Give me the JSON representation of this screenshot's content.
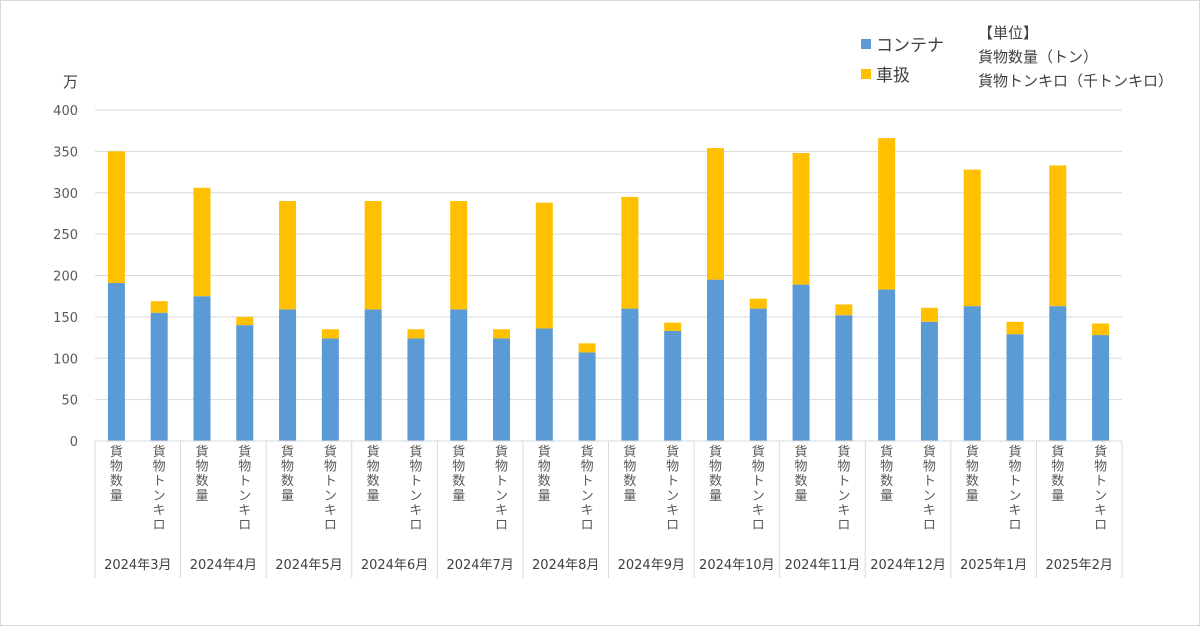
{
  "chart_data": {
    "type": "bar",
    "stacked": true,
    "y_unit_label": "万",
    "ylim": [
      0,
      400
    ],
    "yticks": [
      0,
      50,
      100,
      150,
      200,
      250,
      300,
      350,
      400
    ],
    "grid": true,
    "legend_position": "top-right",
    "unit_note": {
      "heading": "【単位】",
      "lines": [
        "貨物数量（トン）",
        "貨物トンキロ（千トンキロ）"
      ]
    },
    "sub_categories": [
      "貨物数量",
      "貨物トンキロ"
    ],
    "groups": [
      "2024年3月",
      "2024年4月",
      "2024年5月",
      "2024年6月",
      "2024年7月",
      "2024年8月",
      "2024年9月",
      "2024年10月",
      "2024年11月",
      "2024年12月",
      "2025年1月",
      "2025年2月"
    ],
    "series": [
      {
        "name": "コンテナ",
        "color": "#5b9bd5",
        "values": [
          [
            191,
            155
          ],
          [
            175,
            140
          ],
          [
            159,
            124
          ],
          [
            159,
            124
          ],
          [
            159,
            124
          ],
          [
            136,
            107
          ],
          [
            160,
            133
          ],
          [
            195,
            160
          ],
          [
            189,
            152
          ],
          [
            183,
            144
          ],
          [
            163,
            129
          ],
          [
            163,
            128
          ]
        ]
      },
      {
        "name": "車扱",
        "color": "#ffc000",
        "values": [
          [
            159,
            14
          ],
          [
            131,
            10
          ],
          [
            131,
            11
          ],
          [
            131,
            11
          ],
          [
            131,
            11
          ],
          [
            152,
            11
          ],
          [
            135,
            10
          ],
          [
            159,
            12
          ],
          [
            159,
            13
          ],
          [
            183,
            17
          ],
          [
            165,
            15
          ],
          [
            170,
            14
          ]
        ]
      }
    ]
  }
}
